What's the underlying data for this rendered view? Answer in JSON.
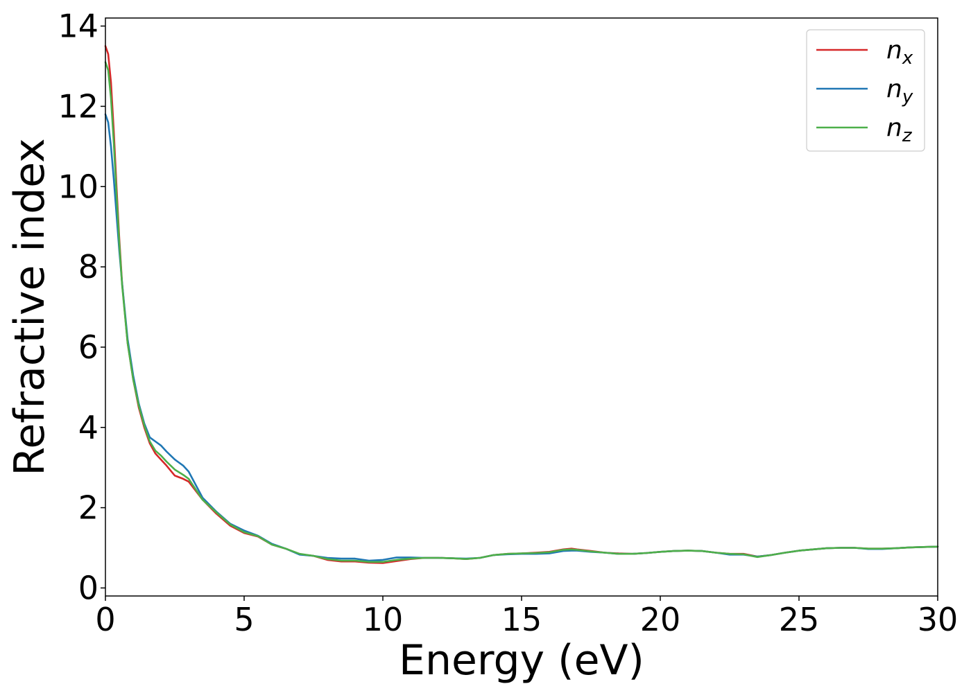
{
  "chart_data": {
    "type": "line",
    "title": "",
    "xlabel": "Energy (eV)",
    "ylabel": "Refractive index",
    "xlim": [
      0,
      30
    ],
    "ylim": [
      -0.2,
      14.2
    ],
    "xticks": [
      "0",
      "5",
      "10",
      "15",
      "20",
      "25",
      "30"
    ],
    "xtick_values": [
      0,
      5,
      10,
      15,
      20,
      25,
      30
    ],
    "yticks": [
      "0",
      "2",
      "4",
      "6",
      "8",
      "10",
      "12",
      "14"
    ],
    "ytick_values": [
      0,
      2,
      4,
      6,
      8,
      10,
      12,
      14
    ],
    "grid": false,
    "legend_position": "top-right",
    "series": [
      {
        "name": "n",
        "subscript": "x",
        "color": "#d62728",
        "x": [
          0,
          0.1,
          0.2,
          0.3,
          0.4,
          0.5,
          0.6,
          0.8,
          1.0,
          1.2,
          1.4,
          1.6,
          1.8,
          2.0,
          2.2,
          2.5,
          2.8,
          3.0,
          3.5,
          4.0,
          4.5,
          5.0,
          5.5,
          6.0,
          6.5,
          7.0,
          7.5,
          8.0,
          8.5,
          9.0,
          9.5,
          10.0,
          10.5,
          11.0,
          11.5,
          12.0,
          12.5,
          13.0,
          13.5,
          14.0,
          14.5,
          15.0,
          15.5,
          16.0,
          16.5,
          16.8,
          17.0,
          17.5,
          18.0,
          18.5,
          19.0,
          19.5,
          20.0,
          20.5,
          21.0,
          21.5,
          22.0,
          22.5,
          23.0,
          23.5,
          24.0,
          24.5,
          25.0,
          25.5,
          26.0,
          26.5,
          27.0,
          27.5,
          28.0,
          28.5,
          29.0,
          29.5,
          30.0
        ],
        "y": [
          13.5,
          13.3,
          12.6,
          11.4,
          10.0,
          8.7,
          7.6,
          6.1,
          5.2,
          4.5,
          4.0,
          3.6,
          3.35,
          3.2,
          3.05,
          2.8,
          2.72,
          2.65,
          2.2,
          1.85,
          1.55,
          1.37,
          1.28,
          1.08,
          0.98,
          0.84,
          0.8,
          0.7,
          0.66,
          0.66,
          0.63,
          0.62,
          0.67,
          0.72,
          0.75,
          0.75,
          0.74,
          0.72,
          0.75,
          0.82,
          0.85,
          0.86,
          0.88,
          0.9,
          0.96,
          0.98,
          0.96,
          0.92,
          0.88,
          0.86,
          0.85,
          0.87,
          0.9,
          0.92,
          0.93,
          0.92,
          0.88,
          0.85,
          0.85,
          0.78,
          0.82,
          0.88,
          0.93,
          0.96,
          0.99,
          1.0,
          1.0,
          0.98,
          0.98,
          0.99,
          1.01,
          1.02,
          1.03
        ]
      },
      {
        "name": "n",
        "subscript": "y",
        "color": "#1f77b4",
        "x": [
          0,
          0.1,
          0.2,
          0.3,
          0.4,
          0.5,
          0.6,
          0.8,
          1.0,
          1.2,
          1.4,
          1.6,
          1.8,
          2.0,
          2.2,
          2.5,
          2.8,
          3.0,
          3.5,
          4.0,
          4.5,
          5.0,
          5.5,
          6.0,
          6.5,
          7.0,
          7.5,
          8.0,
          8.5,
          9.0,
          9.5,
          10.0,
          10.5,
          11.0,
          11.5,
          12.0,
          12.5,
          13.0,
          13.5,
          14.0,
          14.5,
          15.0,
          15.5,
          16.0,
          16.5,
          16.8,
          17.0,
          17.5,
          18.0,
          18.5,
          19.0,
          19.5,
          20.0,
          20.5,
          21.0,
          21.5,
          22.0,
          22.5,
          23.0,
          23.5,
          24.0,
          24.5,
          25.0,
          25.5,
          26.0,
          26.5,
          27.0,
          27.5,
          28.0,
          28.5,
          29.0,
          29.5,
          30.0
        ],
        "y": [
          11.8,
          11.6,
          11.0,
          10.2,
          9.3,
          8.4,
          7.6,
          6.2,
          5.3,
          4.6,
          4.1,
          3.75,
          3.65,
          3.55,
          3.4,
          3.2,
          3.05,
          2.9,
          2.25,
          1.9,
          1.6,
          1.43,
          1.3,
          1.1,
          0.98,
          0.83,
          0.8,
          0.75,
          0.73,
          0.73,
          0.68,
          0.7,
          0.76,
          0.76,
          0.75,
          0.75,
          0.74,
          0.73,
          0.75,
          0.82,
          0.84,
          0.85,
          0.85,
          0.86,
          0.92,
          0.93,
          0.93,
          0.9,
          0.88,
          0.85,
          0.85,
          0.87,
          0.9,
          0.92,
          0.93,
          0.92,
          0.88,
          0.83,
          0.83,
          0.78,
          0.82,
          0.88,
          0.93,
          0.96,
          0.99,
          1.0,
          1.0,
          0.97,
          0.97,
          0.99,
          1.01,
          1.02,
          1.03
        ]
      },
      {
        "name": "n",
        "subscript": "z",
        "color": "#4daf4a",
        "x": [
          0,
          0.1,
          0.2,
          0.3,
          0.4,
          0.5,
          0.6,
          0.8,
          1.0,
          1.2,
          1.4,
          1.6,
          1.8,
          2.0,
          2.2,
          2.5,
          2.8,
          3.0,
          3.5,
          4.0,
          4.5,
          5.0,
          5.5,
          6.0,
          6.5,
          7.0,
          7.5,
          8.0,
          8.5,
          9.0,
          9.5,
          10.0,
          10.5,
          11.0,
          11.5,
          12.0,
          12.5,
          13.0,
          13.5,
          14.0,
          14.5,
          15.0,
          15.5,
          16.0,
          16.5,
          16.8,
          17.0,
          17.5,
          18.0,
          18.5,
          19.0,
          19.5,
          20.0,
          20.5,
          21.0,
          21.5,
          22.0,
          22.5,
          23.0,
          23.5,
          24.0,
          24.5,
          25.0,
          25.5,
          26.0,
          26.5,
          27.0,
          27.5,
          28.0,
          28.5,
          29.0,
          29.5,
          30.0
        ],
        "y": [
          13.1,
          12.9,
          12.2,
          11.1,
          9.8,
          8.6,
          7.55,
          6.1,
          5.2,
          4.55,
          4.05,
          3.65,
          3.42,
          3.3,
          3.15,
          2.95,
          2.82,
          2.72,
          2.2,
          1.88,
          1.58,
          1.39,
          1.29,
          1.08,
          0.98,
          0.85,
          0.8,
          0.72,
          0.68,
          0.68,
          0.65,
          0.65,
          0.7,
          0.73,
          0.75,
          0.75,
          0.74,
          0.72,
          0.75,
          0.82,
          0.85,
          0.86,
          0.87,
          0.89,
          0.95,
          0.96,
          0.95,
          0.91,
          0.88,
          0.85,
          0.85,
          0.87,
          0.9,
          0.92,
          0.93,
          0.92,
          0.88,
          0.85,
          0.84,
          0.77,
          0.82,
          0.88,
          0.93,
          0.96,
          0.99,
          1.0,
          1.0,
          0.98,
          0.98,
          0.99,
          1.01,
          1.02,
          1.03
        ]
      }
    ]
  }
}
